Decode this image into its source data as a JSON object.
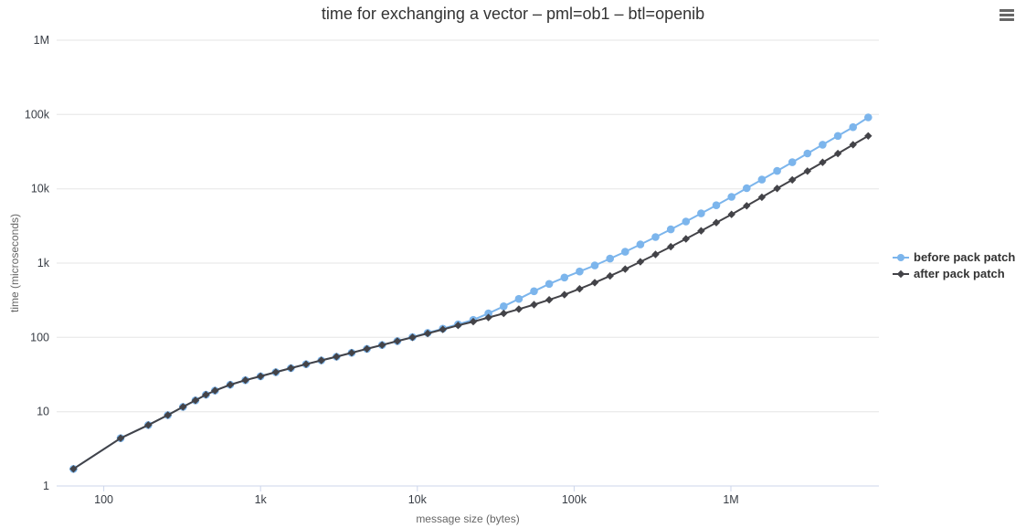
{
  "title": "time for exchanging a vector – pml=ob1 – btl=openib",
  "export_menu": {
    "icon": "hamburger-icon",
    "tooltip": "chart context menu"
  },
  "colors": {
    "series_before": "#7cb5ec",
    "series_after": "#434348",
    "grid": "#e6e6e6",
    "axis_line": "#ccd6eb",
    "tick_label": "#383d45",
    "axis_title": "#666666",
    "title_text": "#333333",
    "legend_text": "#333333",
    "menu_icon": "#666666"
  },
  "chart_data": {
    "type": "line",
    "title": "time for exchanging a vector – pml=ob1 – btl=openib",
    "xlabel": "message size (bytes)",
    "ylabel": "time (microseconds)",
    "x_scale": "log",
    "y_scale": "log",
    "xlim": [
      50,
      8800000
    ],
    "ylim": [
      1,
      1000000
    ],
    "grid": "horizontal",
    "legend_position": "right",
    "x_ticks": [
      {
        "value": 100,
        "label": "100"
      },
      {
        "value": 1000,
        "label": "1k"
      },
      {
        "value": 10000,
        "label": "10k"
      },
      {
        "value": 100000,
        "label": "100k"
      },
      {
        "value": 1000000,
        "label": "1M"
      }
    ],
    "y_ticks": [
      {
        "value": 1000000,
        "label": "1M"
      },
      {
        "value": 100000,
        "label": "100k"
      },
      {
        "value": 10000,
        "label": "10k"
      },
      {
        "value": 1000,
        "label": "1k"
      },
      {
        "value": 100,
        "label": "100"
      },
      {
        "value": 10,
        "label": "10"
      },
      {
        "value": 1,
        "label": "1"
      }
    ],
    "x": [
      64,
      128,
      192,
      256,
      320,
      384,
      448,
      512,
      640,
      800,
      1000,
      1250,
      1560,
      1950,
      2440,
      3050,
      3810,
      4770,
      5960,
      7450,
      9310,
      11640,
      14550,
      18190,
      22740,
      28420,
      35530,
      44410,
      55510,
      69390,
      86740,
      108420,
      135520,
      169410,
      211760,
      264700,
      330870,
      413590,
      516990,
      646240,
      807790,
      1009740,
      1262180,
      1577720,
      1972150,
      2465190,
      3081490,
      3851860,
      4814830,
      6018530,
      7523160
    ],
    "series": [
      {
        "name": "before pack patch",
        "color": "#7cb5ec",
        "marker": "circle",
        "values": [
          1.7,
          4.4,
          6.6,
          9.0,
          11.6,
          14.2,
          16.9,
          19.2,
          23.0,
          26.5,
          30.0,
          34.0,
          38.5,
          43.5,
          49.0,
          55.0,
          62.0,
          70.0,
          79.0,
          89.0,
          101,
          115,
          131,
          150,
          172,
          210,
          262,
          330,
          418,
          525,
          640,
          770,
          930,
          1150,
          1420,
          1780,
          2240,
          2840,
          3630,
          4670,
          6000,
          7780,
          10200,
          13300,
          17400,
          22800,
          29900,
          39200,
          51400,
          67500,
          91500
        ]
      },
      {
        "name": "after pack patch",
        "color": "#434348",
        "marker": "diamond",
        "values": [
          1.7,
          4.4,
          6.6,
          9.0,
          11.6,
          14.2,
          16.9,
          19.2,
          23.0,
          26.5,
          30.0,
          34.0,
          38.5,
          43.5,
          49.0,
          55.0,
          62.0,
          70.0,
          79.0,
          89.0,
          100,
          113,
          128,
          145,
          163,
          185,
          210,
          240,
          276,
          320,
          376,
          450,
          545,
          670,
          830,
          1040,
          1310,
          1660,
          2120,
          2720,
          3500,
          4520,
          5900,
          7700,
          10100,
          13200,
          17300,
          22700,
          29800,
          39200,
          51500
        ]
      }
    ]
  }
}
